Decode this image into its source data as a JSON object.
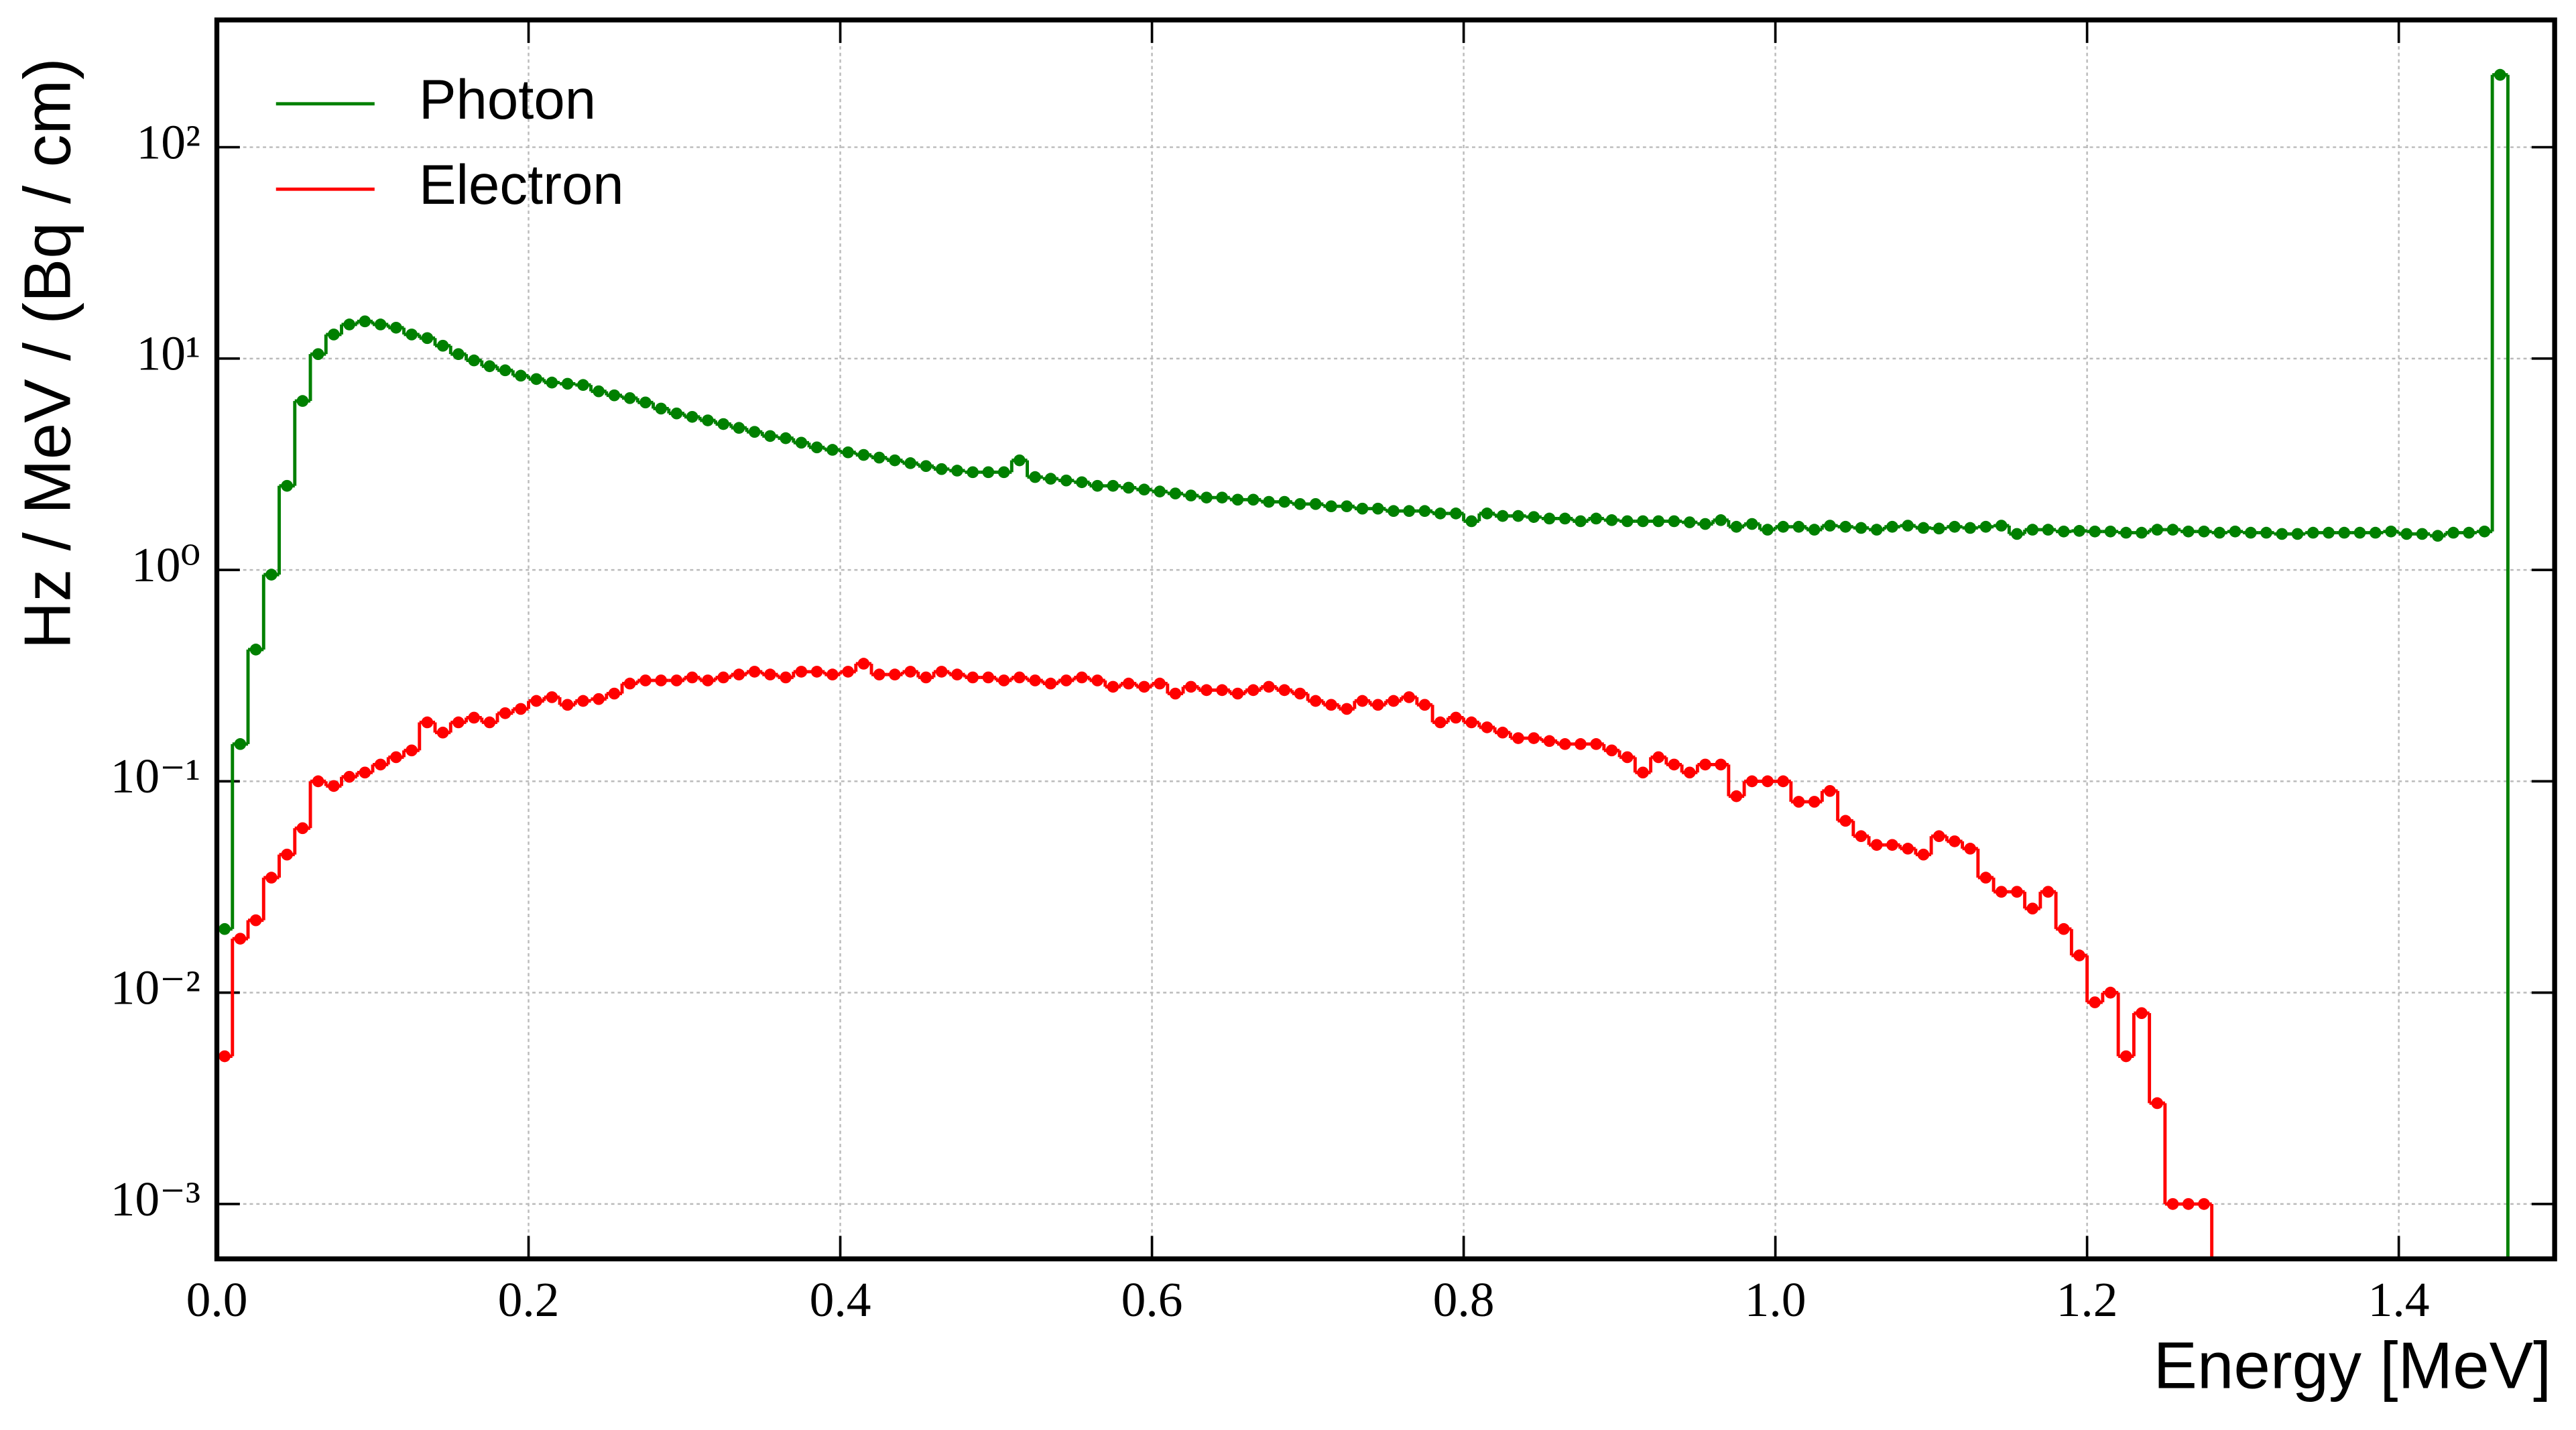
{
  "chart_data": {
    "type": "histogram",
    "xlabel": "Energy [MeV]",
    "ylabel": "Hz / MeV / (Bq / cm)",
    "log_y": true,
    "grid": true,
    "legend": "upper left",
    "xlim": [
      0,
      1.5
    ],
    "ylim": [
      0.00055,
      400
    ],
    "xticks": [
      {
        "value": 0,
        "label": "0.0"
      },
      0.2,
      0.4,
      0.6,
      0.8,
      {
        "value": 1,
        "label": "1.0"
      },
      1.2,
      1.4
    ],
    "yticks": [
      {
        "value": 0.001,
        "label": "10⁻³"
      },
      {
        "value": 0.01,
        "label": "10⁻²"
      },
      {
        "value": 0.1,
        "label": "10⁻¹"
      },
      {
        "value": 1,
        "label": "10⁰"
      },
      {
        "value": 10,
        "label": "10¹"
      },
      {
        "value": 100,
        "label": "10²"
      }
    ],
    "bins": [
      0,
      0.01,
      0.02,
      0.03,
      0.04,
      0.05,
      0.06,
      0.07,
      0.08,
      0.09,
      0.1,
      0.11,
      0.12,
      0.13,
      0.14,
      0.15,
      0.16,
      0.17,
      0.18,
      0.19,
      0.2,
      0.21,
      0.22,
      0.23,
      0.24,
      0.25,
      0.26,
      0.27,
      0.28,
      0.29,
      0.3,
      0.31,
      0.32,
      0.33,
      0.34,
      0.35,
      0.36,
      0.37,
      0.38,
      0.39,
      0.4,
      0.41,
      0.42,
      0.43,
      0.44,
      0.45,
      0.46,
      0.47,
      0.48,
      0.49,
      0.5,
      0.51,
      0.52,
      0.53,
      0.54,
      0.55,
      0.56,
      0.57,
      0.58,
      0.59,
      0.6,
      0.61,
      0.62,
      0.63,
      0.64,
      0.65,
      0.66,
      0.67,
      0.68,
      0.69,
      0.7,
      0.71,
      0.72,
      0.73,
      0.74,
      0.75,
      0.76,
      0.77,
      0.78,
      0.79,
      0.8,
      0.81,
      0.82,
      0.83,
      0.84,
      0.85,
      0.86,
      0.87,
      0.88,
      0.89,
      0.9,
      0.91,
      0.92,
      0.93,
      0.94,
      0.95,
      0.96,
      0.97,
      0.98,
      0.99,
      1.0,
      1.01,
      1.02,
      1.03,
      1.04,
      1.05,
      1.06,
      1.07,
      1.08,
      1.09,
      1.1,
      1.11,
      1.12,
      1.13,
      1.14,
      1.15,
      1.16,
      1.17,
      1.18,
      1.19,
      1.2,
      1.21,
      1.22,
      1.23,
      1.24,
      1.25,
      1.26,
      1.27,
      1.28,
      1.29,
      1.3,
      1.31,
      1.32,
      1.33,
      1.34,
      1.35,
      1.36,
      1.37,
      1.38,
      1.39,
      1.4,
      1.41,
      1.42,
      1.43,
      1.44,
      1.45,
      1.46,
      1.47
    ],
    "series": [
      {
        "name": "Photon",
        "color": "#008000",
        "values": [
          0.02,
          0.15,
          0.42,
          0.95,
          2.5,
          6.3,
          10.5,
          13,
          14.5,
          15,
          14.5,
          14,
          13,
          12.5,
          11.5,
          10.5,
          9.8,
          9.2,
          8.8,
          8.3,
          8.0,
          7.7,
          7.6,
          7.5,
          7.0,
          6.7,
          6.5,
          6.2,
          5.8,
          5.5,
          5.3,
          5.1,
          4.9,
          4.7,
          4.5,
          4.3,
          4.2,
          4.0,
          3.8,
          3.7,
          3.6,
          3.5,
          3.4,
          3.3,
          3.2,
          3.1,
          3.0,
          2.95,
          2.9,
          2.9,
          2.9,
          3.3,
          2.75,
          2.7,
          2.65,
          2.6,
          2.5,
          2.5,
          2.45,
          2.4,
          2.35,
          2.3,
          2.25,
          2.2,
          2.2,
          2.15,
          2.15,
          2.1,
          2.1,
          2.05,
          2.05,
          2.0,
          2.0,
          1.95,
          1.95,
          1.9,
          1.9,
          1.9,
          1.85,
          1.85,
          1.7,
          1.85,
          1.8,
          1.8,
          1.78,
          1.75,
          1.75,
          1.7,
          1.75,
          1.72,
          1.7,
          1.7,
          1.7,
          1.7,
          1.68,
          1.65,
          1.72,
          1.6,
          1.65,
          1.55,
          1.6,
          1.6,
          1.55,
          1.62,
          1.6,
          1.58,
          1.55,
          1.6,
          1.62,
          1.58,
          1.57,
          1.6,
          1.58,
          1.6,
          1.62,
          1.48,
          1.55,
          1.55,
          1.52,
          1.53,
          1.52,
          1.52,
          1.5,
          1.5,
          1.55,
          1.55,
          1.52,
          1.52,
          1.5,
          1.52,
          1.5,
          1.5,
          1.48,
          1.48,
          1.5,
          1.5,
          1.5,
          1.5,
          1.5,
          1.52,
          1.48,
          1.48,
          1.45,
          1.5,
          1.5,
          1.52,
          220
        ]
      },
      {
        "name": "Electron",
        "color": "#ff0000",
        "values": [
          0.005,
          0.018,
          0.022,
          0.035,
          0.045,
          0.06,
          0.1,
          0.095,
          0.105,
          0.11,
          0.12,
          0.13,
          0.14,
          0.19,
          0.17,
          0.19,
          0.2,
          0.19,
          0.21,
          0.22,
          0.24,
          0.25,
          0.23,
          0.24,
          0.245,
          0.26,
          0.29,
          0.3,
          0.3,
          0.3,
          0.31,
          0.3,
          0.31,
          0.32,
          0.33,
          0.32,
          0.31,
          0.33,
          0.33,
          0.32,
          0.33,
          0.36,
          0.32,
          0.32,
          0.33,
          0.31,
          0.33,
          0.32,
          0.31,
          0.31,
          0.3,
          0.31,
          0.3,
          0.29,
          0.3,
          0.31,
          0.3,
          0.28,
          0.29,
          0.28,
          0.29,
          0.26,
          0.28,
          0.27,
          0.27,
          0.26,
          0.27,
          0.28,
          0.27,
          0.26,
          0.24,
          0.23,
          0.22,
          0.24,
          0.23,
          0.24,
          0.25,
          0.23,
          0.19,
          0.2,
          0.19,
          0.18,
          0.17,
          0.16,
          0.16,
          0.155,
          0.15,
          0.15,
          0.15,
          0.14,
          0.13,
          0.11,
          0.13,
          0.12,
          0.11,
          0.12,
          0.12,
          0.085,
          0.1,
          0.1,
          0.1,
          0.08,
          0.08,
          0.09,
          0.065,
          0.055,
          0.05,
          0.05,
          0.048,
          0.045,
          0.055,
          0.052,
          0.048,
          0.035,
          0.03,
          0.03,
          0.025,
          0.03,
          0.02,
          0.015,
          0.009,
          0.01,
          0.005,
          0.008,
          0.003,
          0.001,
          0.001,
          0.001,
          null,
          null,
          null,
          null,
          null,
          null,
          null,
          null,
          null,
          null,
          null,
          null,
          null,
          null,
          null,
          null,
          null,
          null,
          null
        ]
      }
    ]
  }
}
